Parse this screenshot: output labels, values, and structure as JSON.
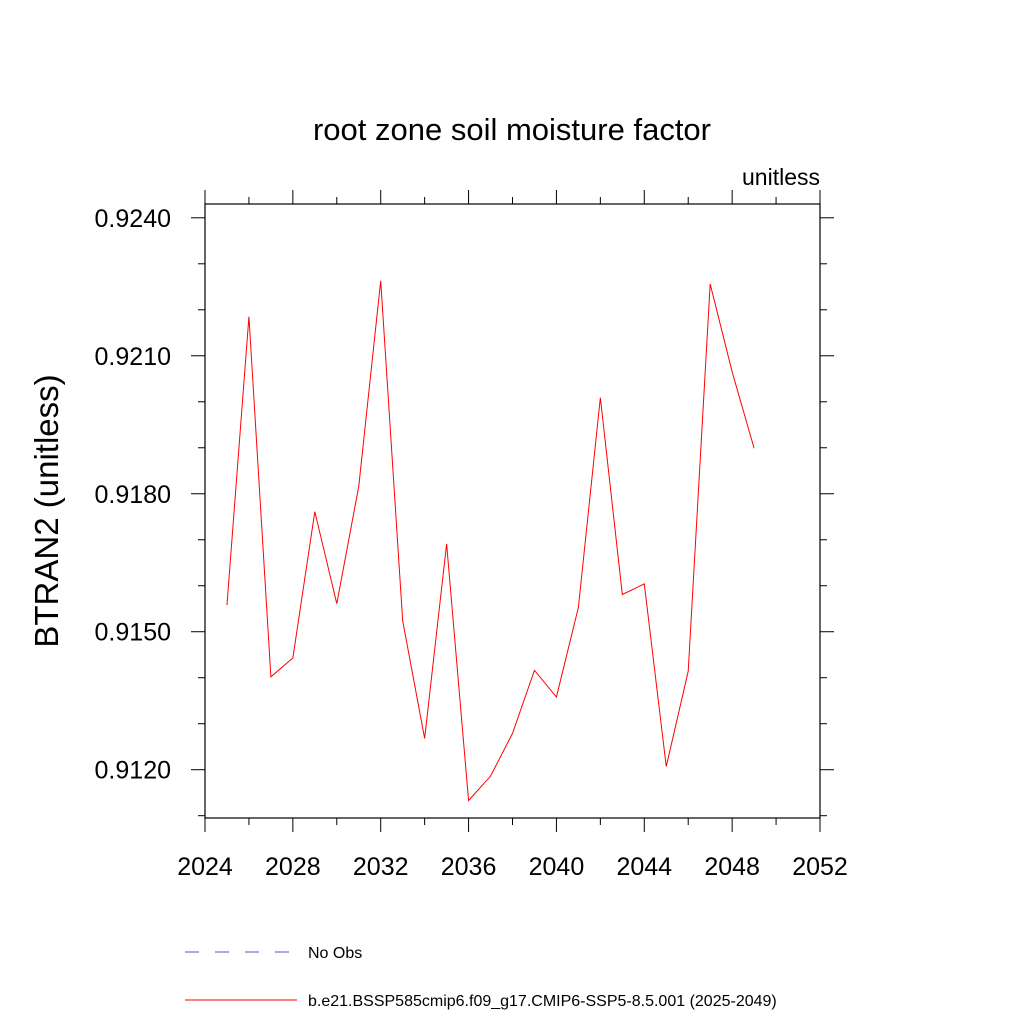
{
  "chart_data": {
    "type": "line",
    "title": "root zone soil moisture factor",
    "units_label": "unitless",
    "xlabel": "",
    "ylabel": "BTRAN2  (unitless)",
    "xlim": [
      2024,
      2052
    ],
    "ylim": [
      0.91095,
      0.9243
    ],
    "x_ticks": [
      2024,
      2028,
      2032,
      2036,
      2040,
      2044,
      2048,
      2052
    ],
    "x_tick_labels": [
      "2024",
      "2028",
      "2032",
      "2036",
      "2040",
      "2044",
      "2048",
      "2052"
    ],
    "y_ticks": [
      0.912,
      0.915,
      0.918,
      0.921,
      0.924
    ],
    "y_tick_labels": [
      "0.9120",
      "0.9150",
      "0.9180",
      "0.9210",
      "0.9240"
    ],
    "series": [
      {
        "name": "No Obs",
        "color": "#5a4fcf",
        "dash": "dashed",
        "x": [],
        "values": []
      },
      {
        "name": "b.e21.BSSP585cmip6.f09_g17.CMIP6-SSP5-8.5.001 (2025-2049)",
        "color": "#ff0000",
        "dash": "solid",
        "x": [
          2025,
          2026,
          2027,
          2028,
          2029,
          2030,
          2031,
          2032,
          2033,
          2034,
          2035,
          2036,
          2037,
          2038,
          2039,
          2040,
          2041,
          2042,
          2043,
          2044,
          2045,
          2046,
          2047,
          2048,
          2049
        ],
        "values": [
          0.91558,
          0.92185,
          0.91402,
          0.91443,
          0.91761,
          0.91561,
          0.91816,
          0.92263,
          0.91524,
          0.91268,
          0.91691,
          0.91133,
          0.91186,
          0.91279,
          0.91416,
          0.91358,
          0.91553,
          0.92009,
          0.91581,
          0.91604,
          0.91207,
          0.91414,
          0.92256,
          0.92065,
          0.91899
        ]
      }
    ],
    "legend": {
      "placement": "bottom-center",
      "entries": [
        "No Obs",
        "b.e21.BSSP585cmip6.f09_g17.CMIP6-SSP5-8.5.001 (2025-2049)"
      ]
    }
  }
}
